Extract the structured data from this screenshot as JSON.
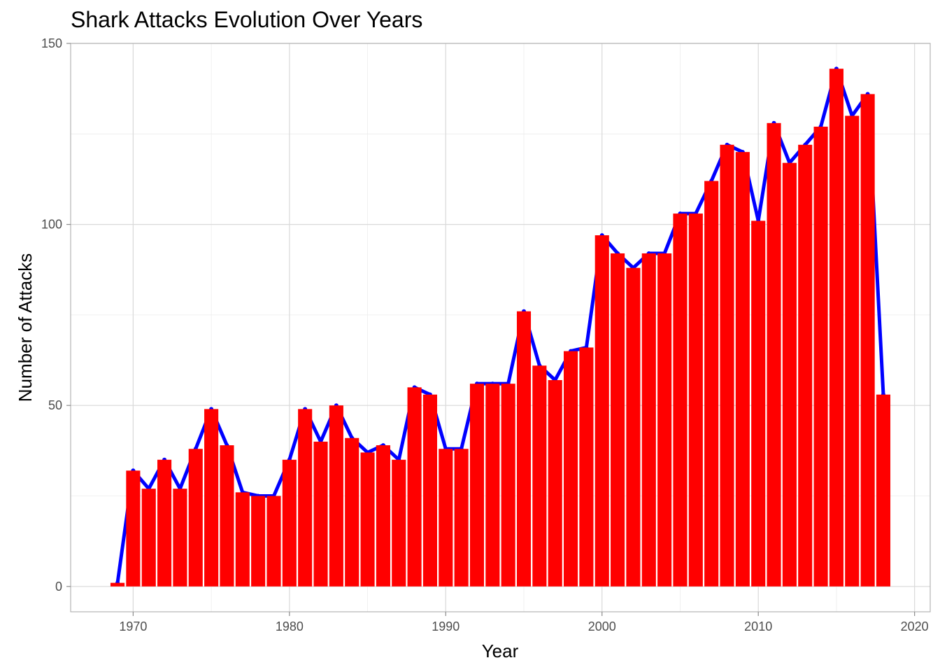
{
  "chart_data": {
    "type": "bar",
    "title": "Shark Attacks Evolution Over Years",
    "xlabel": "Year",
    "ylabel": "Number of Attacks",
    "xlim": [
      1966,
      2021
    ],
    "ylim": [
      -7,
      150
    ],
    "xticks": [
      1970,
      1980,
      1990,
      2000,
      2010,
      2020
    ],
    "yticks": [
      0,
      50,
      100,
      150
    ],
    "grid": true,
    "bar_color": "#ff0000",
    "line_color": "#0000ff",
    "x": [
      1969,
      1970,
      1971,
      1972,
      1973,
      1974,
      1975,
      1976,
      1977,
      1978,
      1979,
      1980,
      1981,
      1982,
      1983,
      1984,
      1985,
      1986,
      1987,
      1988,
      1989,
      1990,
      1991,
      1992,
      1993,
      1994,
      1995,
      1996,
      1997,
      1998,
      1999,
      2000,
      2001,
      2002,
      2003,
      2004,
      2005,
      2006,
      2007,
      2008,
      2009,
      2010,
      2011,
      2012,
      2013,
      2014,
      2015,
      2016,
      2017,
      2018
    ],
    "values": [
      1,
      32,
      27,
      35,
      27,
      38,
      49,
      39,
      26,
      25,
      25,
      35,
      49,
      40,
      50,
      41,
      37,
      39,
      35,
      55,
      53,
      38,
      38,
      56,
      56,
      56,
      76,
      61,
      57,
      65,
      66,
      97,
      92,
      88,
      92,
      92,
      103,
      103,
      112,
      122,
      120,
      101,
      128,
      117,
      122,
      127,
      143,
      130,
      136,
      53
    ],
    "series": [
      {
        "type": "bar",
        "values_ref": "values"
      },
      {
        "type": "line",
        "values_ref": "values"
      }
    ]
  }
}
